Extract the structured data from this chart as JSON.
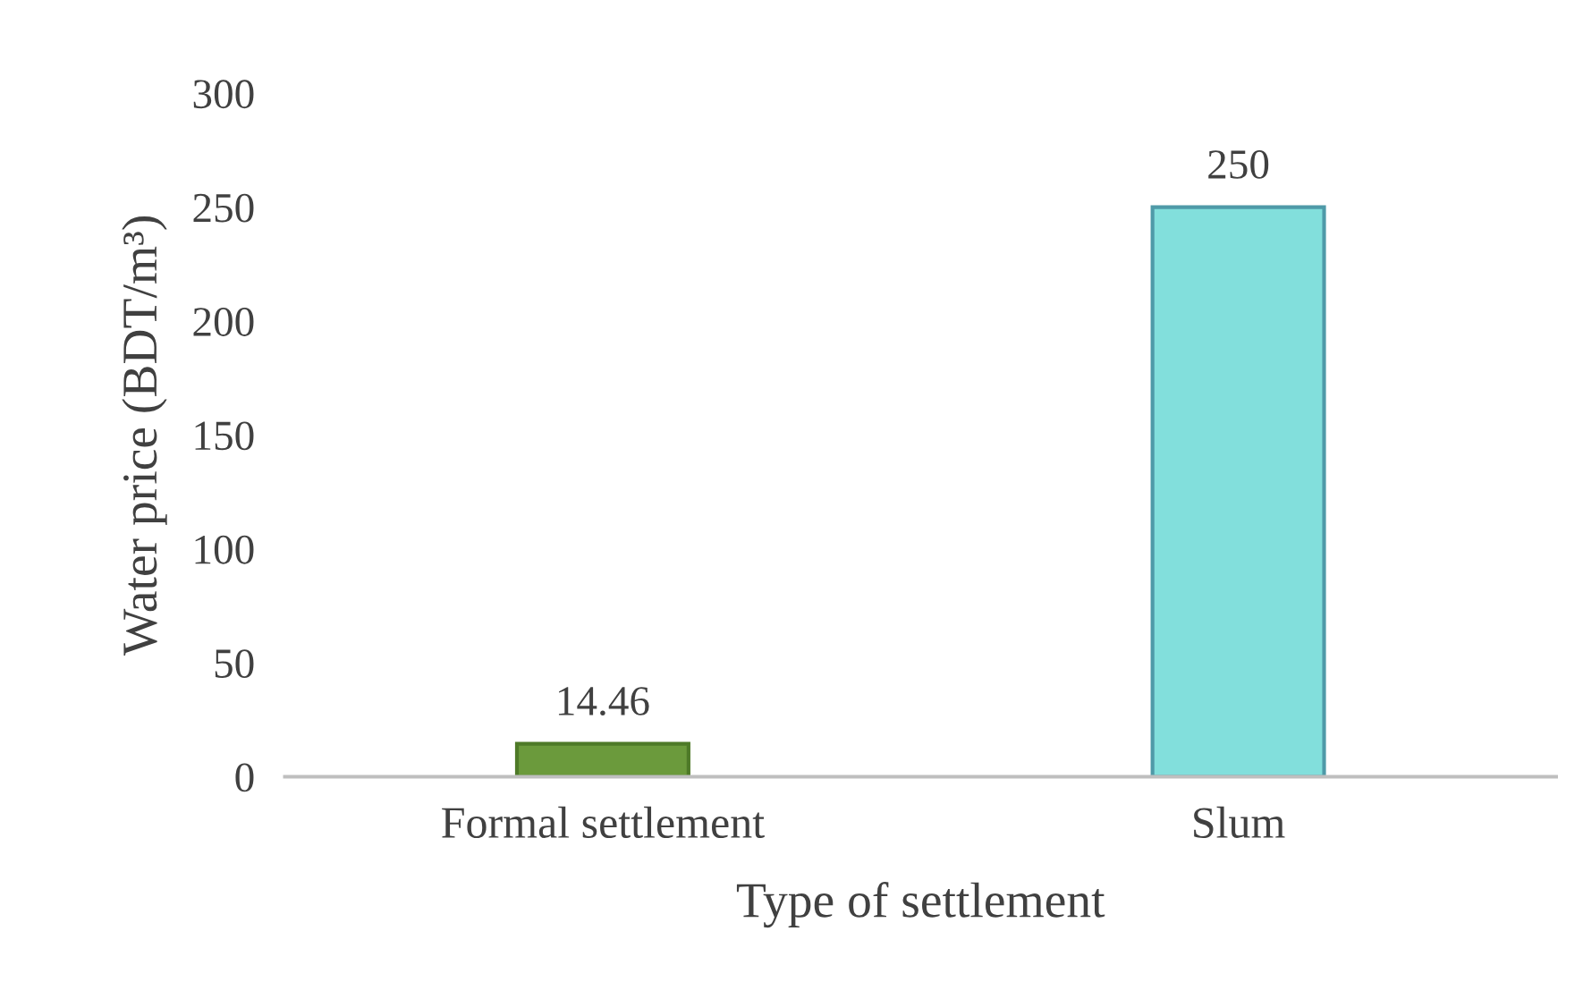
{
  "chart_data": {
    "type": "bar",
    "xlabel": "Type of settlement",
    "ylabel": "Water price (BDT/m³)",
    "categories": [
      "Formal settlement",
      "Slum"
    ],
    "values": [
      14.46,
      250
    ],
    "colors": [
      "#6b9a3c",
      "#82dfdc"
    ],
    "ylim": [
      0,
      300
    ],
    "yticks": [
      0,
      50,
      100,
      150,
      200,
      250,
      300
    ],
    "data_labels": true,
    "grid": false,
    "legend": false
  }
}
